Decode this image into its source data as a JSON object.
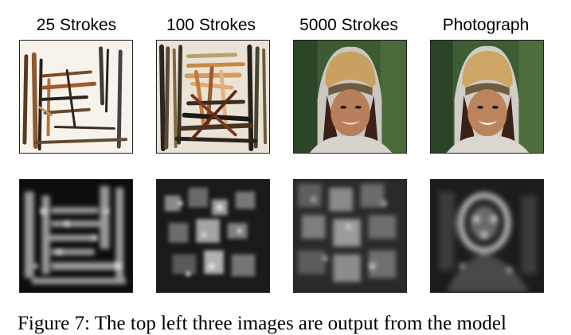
{
  "columns": [
    {
      "title": "25 Strokes"
    },
    {
      "title": "100 Strokes"
    },
    {
      "title": "5000 Strokes"
    },
    {
      "title": "Photograph"
    }
  ],
  "caption": "Figure 7: The top left three images are output from the model"
}
